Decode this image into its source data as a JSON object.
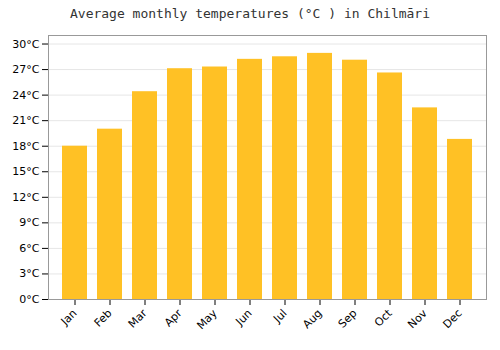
{
  "chart_data": {
    "type": "bar",
    "title": "Average monthly temperatures (°C ) in Chilmāri",
    "categories": [
      "Jan",
      "Feb",
      "Mar",
      "Apr",
      "May",
      "Jun",
      "Jul",
      "Aug",
      "Sep",
      "Oct",
      "Nov",
      "Dec"
    ],
    "values": [
      18.0,
      20.0,
      24.4,
      27.1,
      27.3,
      28.2,
      28.5,
      28.9,
      28.1,
      26.6,
      22.5,
      18.8
    ],
    "color": "#FFC125",
    "ylim": [
      0,
      31
    ],
    "yticks": [
      {
        "value": 0,
        "label": "0°C"
      },
      {
        "value": 3,
        "label": "3°C"
      },
      {
        "value": 6,
        "label": "6°C"
      },
      {
        "value": 9,
        "label": "9°C"
      },
      {
        "value": 12,
        "label": "12°C"
      },
      {
        "value": 15,
        "label": "15°C"
      },
      {
        "value": 18,
        "label": "18°C"
      },
      {
        "value": 21,
        "label": "21°C"
      },
      {
        "value": 24,
        "label": "24°C"
      },
      {
        "value": 27,
        "label": "27°C"
      },
      {
        "value": 30,
        "label": "30°C"
      }
    ],
    "grid": true
  }
}
